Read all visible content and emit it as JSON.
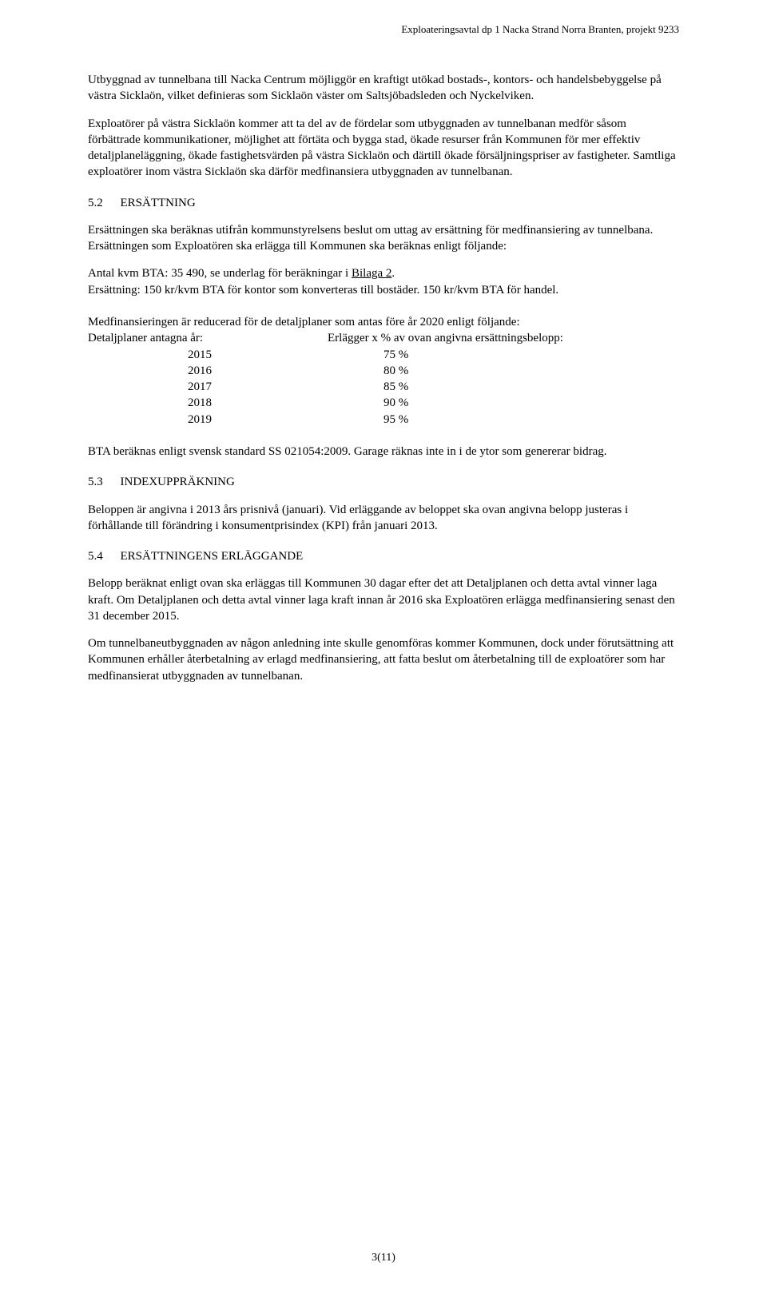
{
  "header": "Exploateringsavtal dp 1 Nacka Strand Norra Branten, projekt 9233",
  "p1": "Utbyggnad av tunnelbana till Nacka Centrum möjliggör en kraftigt utökad bostads-, kontors- och handelsbebyggelse på västra Sicklaön, vilket definieras som Sicklaön väster om Saltsjöbadsleden och Nyckelviken.",
  "p2": "Exploatörer på västra Sicklaön kommer att ta del av de fördelar som utbyggnaden av tunnelbanan medför såsom förbättrade kommunikationer, möjlighet att förtäta och bygga stad, ökade resurser från Kommunen för mer effektiv detaljplaneläggning, ökade fastighetsvärden på västra Sicklaön och därtill ökade försäljningspriser av fastigheter. Samtliga exploatörer inom västra Sicklaön ska därför medfinansiera utbyggnaden av tunnelbanan.",
  "s52": {
    "num": "5.2",
    "title": "ERSÄTTNING"
  },
  "p3": "Ersättningen ska beräknas utifrån kommunstyrelsens beslut om uttag av ersättning för medfinansiering av tunnelbana. Ersättningen som Exploatören ska erlägga till Kommunen ska beräknas enligt följande:",
  "p4a": "Antal kvm BTA: 35 490, se underlag för beräkningar i ",
  "p4b": "Bilaga 2",
  "p4c": ".",
  "p5": "Ersättning: 150 kr/kvm BTA för kontor som konverteras till bostäder. 150 kr/kvm BTA för handel.",
  "p6": "Medfinansieringen är reducerad för de detaljplaner som antas före år 2020 enligt följande:",
  "tableHead": {
    "c1": "Detaljplaner antagna år:",
    "c2": "Erlägger x % av ovan angivna ersättningsbelopp:"
  },
  "yearRows": [
    {
      "year": "2015",
      "pct": "75 %"
    },
    {
      "year": "2016",
      "pct": "80 %"
    },
    {
      "year": "2017",
      "pct": "85 %"
    },
    {
      "year": "2018",
      "pct": "90 %"
    },
    {
      "year": "2019",
      "pct": "95 %"
    }
  ],
  "p7": "BTA beräknas enligt svensk standard SS 021054:2009. Garage räknas inte in i de ytor som genererar bidrag.",
  "s53": {
    "num": "5.3",
    "title": "INDEXUPPRÄKNING"
  },
  "p8": "Beloppen är angivna i 2013 års prisnivå (januari). Vid erläggande av beloppet ska ovan angivna belopp justeras i förhållande till förändring i konsumentprisindex (KPI) från januari 2013.",
  "s54": {
    "num": "5.4",
    "title": "ERSÄTTNINGENS ERLÄGGANDE"
  },
  "p9": "Belopp beräknat enligt ovan ska erläggas till Kommunen 30 dagar efter det att Detaljplanen och detta avtal vinner laga kraft. Om Detaljplanen och detta avtal vinner laga kraft innan år 2016 ska Exploatören erlägga medfinansiering senast den 31 december 2015.",
  "p10": "Om tunnelbaneutbyggnaden av någon anledning inte skulle genomföras kommer Kommunen, dock under förutsättning att Kommunen erhåller återbetalning av erlagd medfinansiering, att fatta beslut om återbetalning till de exploatörer som har medfinansierat utbyggnaden av tunnelbanan.",
  "pageNum": "3(11)"
}
